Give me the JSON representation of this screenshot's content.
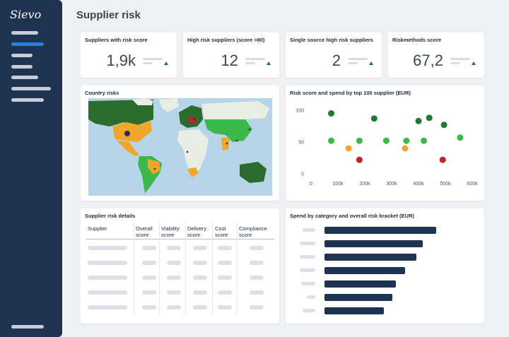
{
  "app": {
    "logo_text": "Sievo"
  },
  "page": {
    "title": "Supplier risk"
  },
  "kpis": [
    {
      "title": "Suppliers with risk score",
      "value": "1,9k"
    },
    {
      "title": "High risk suppliers (score >80)",
      "value": "12"
    },
    {
      "title": "Single source high risk suppliers",
      "value": "2"
    },
    {
      "title": "Riskmethods score",
      "value": "67,2"
    }
  ],
  "map_card": {
    "title": "Country risks"
  },
  "scatter_card": {
    "title": "Risk score and spend by top 100 supplier (EUR)"
  },
  "details_card": {
    "title": "Supplier risk details",
    "columns": [
      "Supplier",
      "Overall score",
      "Viability score",
      "Delivery score",
      "Cost score",
      "Compliance score"
    ]
  },
  "category_card": {
    "title": "Spend by category and overall risk bracket (EUR)"
  },
  "colors": {
    "sidebar": "#1e3350",
    "accent": "#2a7de1",
    "dark_green": "#1e7a2e",
    "green": "#3cb84a",
    "orange": "#f2a629",
    "red": "#c0242b"
  },
  "chart_data": [
    {
      "type": "scatter",
      "title": "Risk score and spend by top 100 supplier (EUR)",
      "x_ticks": [
        "0",
        "100k",
        "200k",
        "300k",
        "400k",
        "500k",
        "600k"
      ],
      "y_ticks": [
        "0",
        "50",
        "100"
      ],
      "xlim": [
        0,
        600000
      ],
      "ylim": [
        0,
        100
      ],
      "points": [
        {
          "x": 75000,
          "y": 95,
          "color": "#1e7a2e"
        },
        {
          "x": 75000,
          "y": 52,
          "color": "#3cb84a"
        },
        {
          "x": 140000,
          "y": 40,
          "color": "#f2a629"
        },
        {
          "x": 180000,
          "y": 52,
          "color": "#3cb84a"
        },
        {
          "x": 180000,
          "y": 22,
          "color": "#c0242b"
        },
        {
          "x": 235000,
          "y": 87,
          "color": "#1e7a2e"
        },
        {
          "x": 280000,
          "y": 52,
          "color": "#3cb84a"
        },
        {
          "x": 355000,
          "y": 52,
          "color": "#3cb84a"
        },
        {
          "x": 350000,
          "y": 40,
          "color": "#f2a629"
        },
        {
          "x": 400000,
          "y": 83,
          "color": "#1e7a2e"
        },
        {
          "x": 420000,
          "y": 52,
          "color": "#3cb84a"
        },
        {
          "x": 440000,
          "y": 88,
          "color": "#1e7a2e"
        },
        {
          "x": 495000,
          "y": 77,
          "color": "#1e7a2e"
        },
        {
          "x": 490000,
          "y": 22,
          "color": "#c0242b"
        },
        {
          "x": 555000,
          "y": 57,
          "color": "#3cb84a"
        }
      ]
    },
    {
      "type": "bar",
      "title": "Spend by category and overall risk bracket (EUR)",
      "values": [
        1.0,
        0.88,
        0.82,
        0.72,
        0.64,
        0.61,
        0.53
      ]
    }
  ]
}
